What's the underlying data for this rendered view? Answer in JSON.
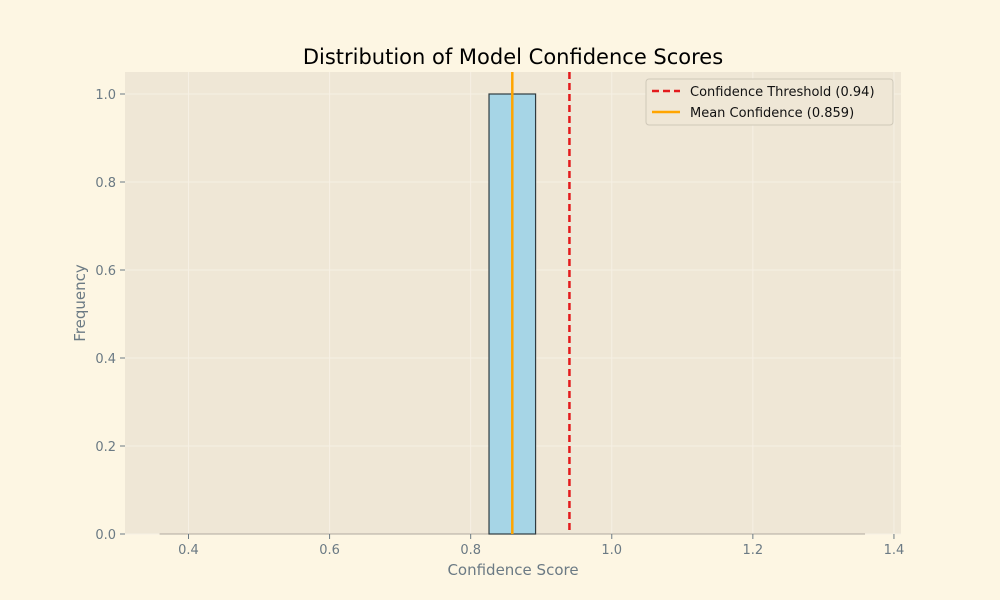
{
  "chart_data": {
    "type": "bar",
    "title": "Distribution of Model Confidence Scores",
    "xlabel": "Confidence Score",
    "ylabel": "Frequency",
    "xlim": [
      0.31,
      1.41
    ],
    "ylim": [
      0,
      1.05
    ],
    "xticks": [
      "0.4",
      "0.6",
      "0.8",
      "1.0",
      "1.2",
      "1.4"
    ],
    "yticks": [
      "0.0",
      "0.2",
      "0.4",
      "0.6",
      "0.8",
      "1.0"
    ],
    "grid": true,
    "bins": [
      {
        "start": 0.826,
        "end": 0.892,
        "count": 1
      }
    ],
    "baseline_range": [
      0.359,
      1.359
    ],
    "reference_lines": [
      {
        "label": "Confidence Threshold (0.94)",
        "x": 0.94,
        "style": "dashed",
        "color": "#e31a1c"
      },
      {
        "label": "Mean Confidence (0.859)",
        "x": 0.859,
        "style": "solid",
        "color": "#ffa500"
      }
    ],
    "legend_position": "top-right",
    "bar_color": "#a6d5e6",
    "bar_edge_color": "#2f3b40",
    "plot_background": "#efe7d6"
  }
}
